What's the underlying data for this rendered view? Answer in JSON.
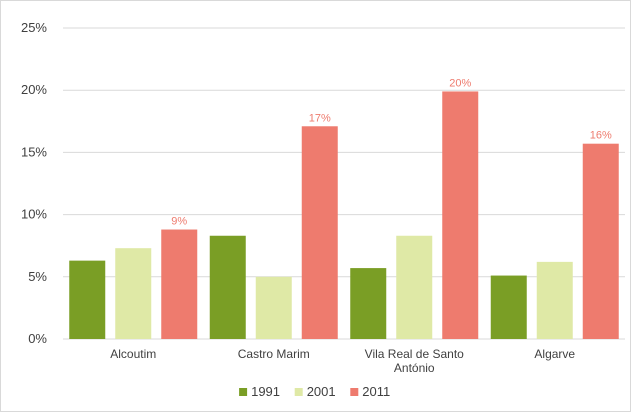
{
  "chart_data": {
    "type": "bar",
    "title": "",
    "xlabel": "",
    "ylabel": "",
    "categories": [
      [
        "Alcoutim"
      ],
      [
        "Castro Marim"
      ],
      [
        "Vila Real de Santo",
        "António"
      ],
      [
        "Algarve"
      ]
    ],
    "series": [
      {
        "name": "1991",
        "values": [
          6.3,
          8.3,
          5.7,
          5.1
        ],
        "color": "#7a9e25",
        "labels": [
          "",
          "",
          "",
          ""
        ]
      },
      {
        "name": "2001",
        "values": [
          7.3,
          5.0,
          8.3,
          6.2
        ],
        "color": "#dfe9a6",
        "labels": [
          "",
          "",
          "",
          ""
        ]
      },
      {
        "name": "2011",
        "values": [
          8.8,
          17.1,
          19.9,
          15.7
        ],
        "color": "#ee7b6e",
        "labels": [
          "9%",
          "17%",
          "20%",
          "16%"
        ]
      }
    ],
    "ylim": [
      0,
      25
    ],
    "yticks": [
      0,
      5,
      10,
      15,
      20,
      25
    ],
    "ytick_labels": [
      "0%",
      "5%",
      "10%",
      "15%",
      "20%",
      "25%"
    ],
    "grid": true,
    "legend_position": "bottom",
    "data_label_color": "#ee7b6e",
    "grid_color": "#d9d9d9",
    "text_color": "#404040"
  }
}
